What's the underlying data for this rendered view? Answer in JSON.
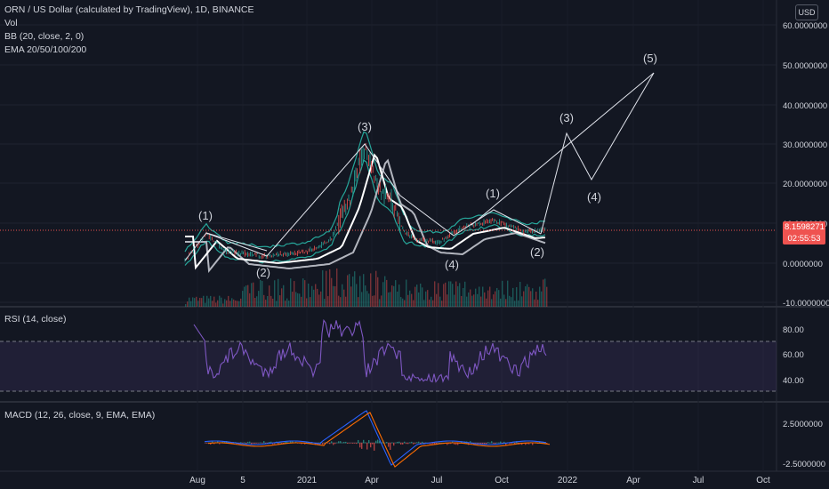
{
  "header": {
    "title": "ORN / US Dollar (calculated by TradingView), 1D, BINANCE",
    "vol": "Vol",
    "bb": "BB (20, close, 2, 0)",
    "ema": "EMA 20/50/100/200"
  },
  "currency_button": "USD",
  "price_tag": {
    "price": "8.1598271",
    "countdown": "02:55:53"
  },
  "price_axis": {
    "ticks": [
      "60.0000000",
      "50.0000000",
      "40.0000000",
      "30.0000000",
      "20.0000000",
      "10.0000000",
      "0.0000000",
      "-10.0000000"
    ]
  },
  "rsi": {
    "label": "RSI (14, close)",
    "ticks": [
      "80.00",
      "60.00",
      "40.00"
    ]
  },
  "macd": {
    "label": "MACD (12, 26, close, 9, EMA, EMA)",
    "ticks": [
      "2.5000000",
      "-2.5000000"
    ]
  },
  "time_axis": {
    "ticks": [
      "Aug",
      "5",
      "2021",
      "Apr",
      "Jul",
      "Oct",
      "2022",
      "Apr",
      "Jul",
      "Oct"
    ]
  },
  "wave_labels": [
    "(1)",
    "(2)",
    "(3)",
    "(4)",
    "(1)",
    "(2)",
    "(3)",
    "(4)",
    "(5)"
  ],
  "colors": {
    "background": "#131722",
    "price_line": "#ef5350",
    "bb_band": "#26a69a",
    "ema_white": "#ffffff",
    "rsi_line": "#7e57c2",
    "macd_line": "#2962ff",
    "signal_line": "#ff6d00"
  }
}
